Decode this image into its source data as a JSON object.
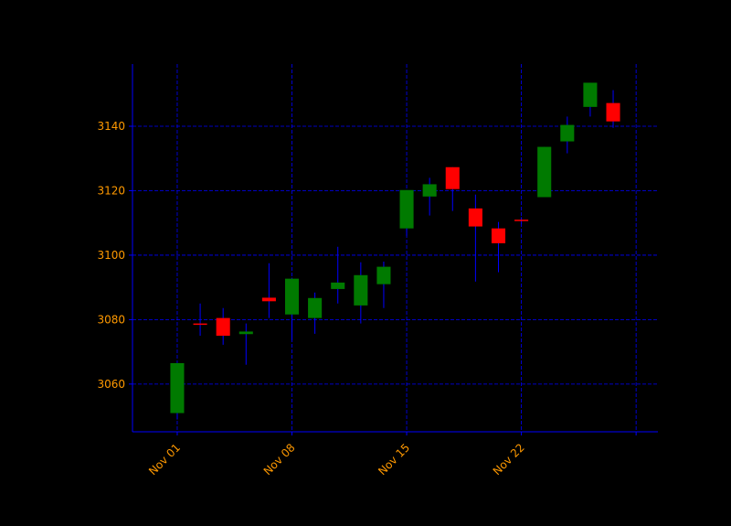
{
  "chart_data": {
    "type": "candlestick",
    "categories": [
      "Nov 01",
      null,
      null,
      null,
      null,
      "Nov 08",
      null,
      null,
      null,
      null,
      "Nov 15",
      null,
      null,
      null,
      null,
      "Nov 22",
      null,
      null,
      null,
      null
    ],
    "open": [
      3051,
      3078.8,
      3080.5,
      3075.5,
      3086.8,
      3081.6,
      3080.5,
      3089.5,
      3084.4,
      3091,
      3108.3,
      3118.2,
      3127.3,
      3114.5,
      3108.3,
      3111,
      3118,
      3135.3,
      3146,
      3147.2
    ],
    "high": [
      3066.5,
      3085,
      3083.6,
      3078.8,
      3097.5,
      3093,
      3088.4,
      3102.6,
      3097.8,
      3098,
      3120.2,
      3124,
      3127.3,
      3118.8,
      3110.3,
      3111.8,
      3133.6,
      3143,
      3153.5,
      3151.2
    ],
    "low": [
      3049,
      3075,
      3072.2,
      3066,
      3080.5,
      3073.6,
      3075.6,
      3085,
      3078.8,
      3083.6,
      3106,
      3112.3,
      3113.7,
      3091.8,
      3094.7,
      3109.6,
      3118,
      3131.6,
      3143,
      3139.5
    ],
    "close": [
      3066.5,
      3078.5,
      3075,
      3076.3,
      3085.7,
      3092.7,
      3086.7,
      3091.5,
      3093.8,
      3096.4,
      3120.2,
      3122,
      3120.5,
      3108.9,
      3103.7,
      3110.7,
      3133.6,
      3140.4,
      3153.5,
      3141.5
    ],
    "up_color": "#007a00",
    "down_color": "#ff0000",
    "wick_color": "#0000ff",
    "xlim": [
      -1.95,
      20.95
    ],
    "ylim": [
      3045.2,
      3159.3
    ],
    "yticks": [
      3060,
      3080,
      3100,
      3120,
      3140
    ],
    "grid": true
  }
}
